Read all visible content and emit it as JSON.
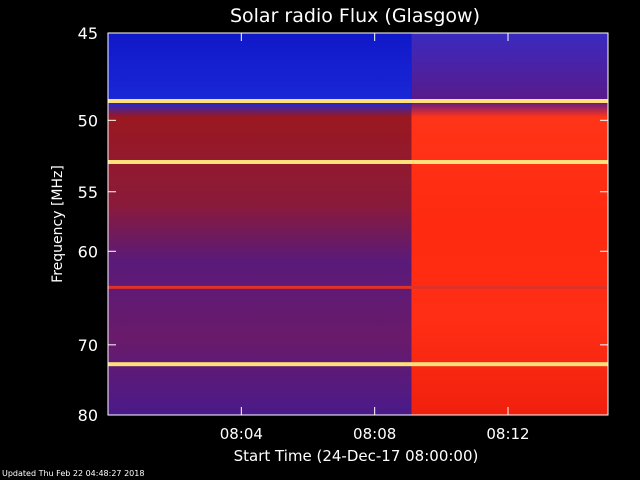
{
  "chart_data": {
    "type": "heatmap",
    "title": "Solar radio Flux (Glasgow)",
    "xlabel": "Start Time (24-Dec-17 08:00:00)",
    "ylabel": "Frequency [MHz]",
    "x_unit": "minutes after 08:00:00",
    "x_range": [
      0,
      15
    ],
    "x_ticks": [
      {
        "value": 4,
        "label": "08:04"
      },
      {
        "value": 8,
        "label": "08:08"
      },
      {
        "value": 12,
        "label": "08:12"
      }
    ],
    "y_range": [
      45,
      80
    ],
    "y_inverted": true,
    "y_ticks": [
      {
        "value": 45,
        "label": "45"
      },
      {
        "value": 50,
        "label": "50"
      },
      {
        "value": 55,
        "label": "55"
      },
      {
        "value": 60,
        "label": "60"
      },
      {
        "value": 70,
        "label": "70"
      },
      {
        "value": 80,
        "label": "80"
      }
    ],
    "transition_minute": 9.1,
    "bright_lines_mhz": [
      48.8,
      52.8,
      72.5
    ],
    "mid_line_mhz": 63.5,
    "colors": {
      "low": "#1a22c8",
      "mid": "#8a1a4a",
      "high_left": "#a8141e",
      "high_right": "#ff2a12",
      "line": "#ffe07a"
    }
  },
  "footer": {
    "updated": "Updated Thu Feb 22 04:48:27 2018"
  }
}
